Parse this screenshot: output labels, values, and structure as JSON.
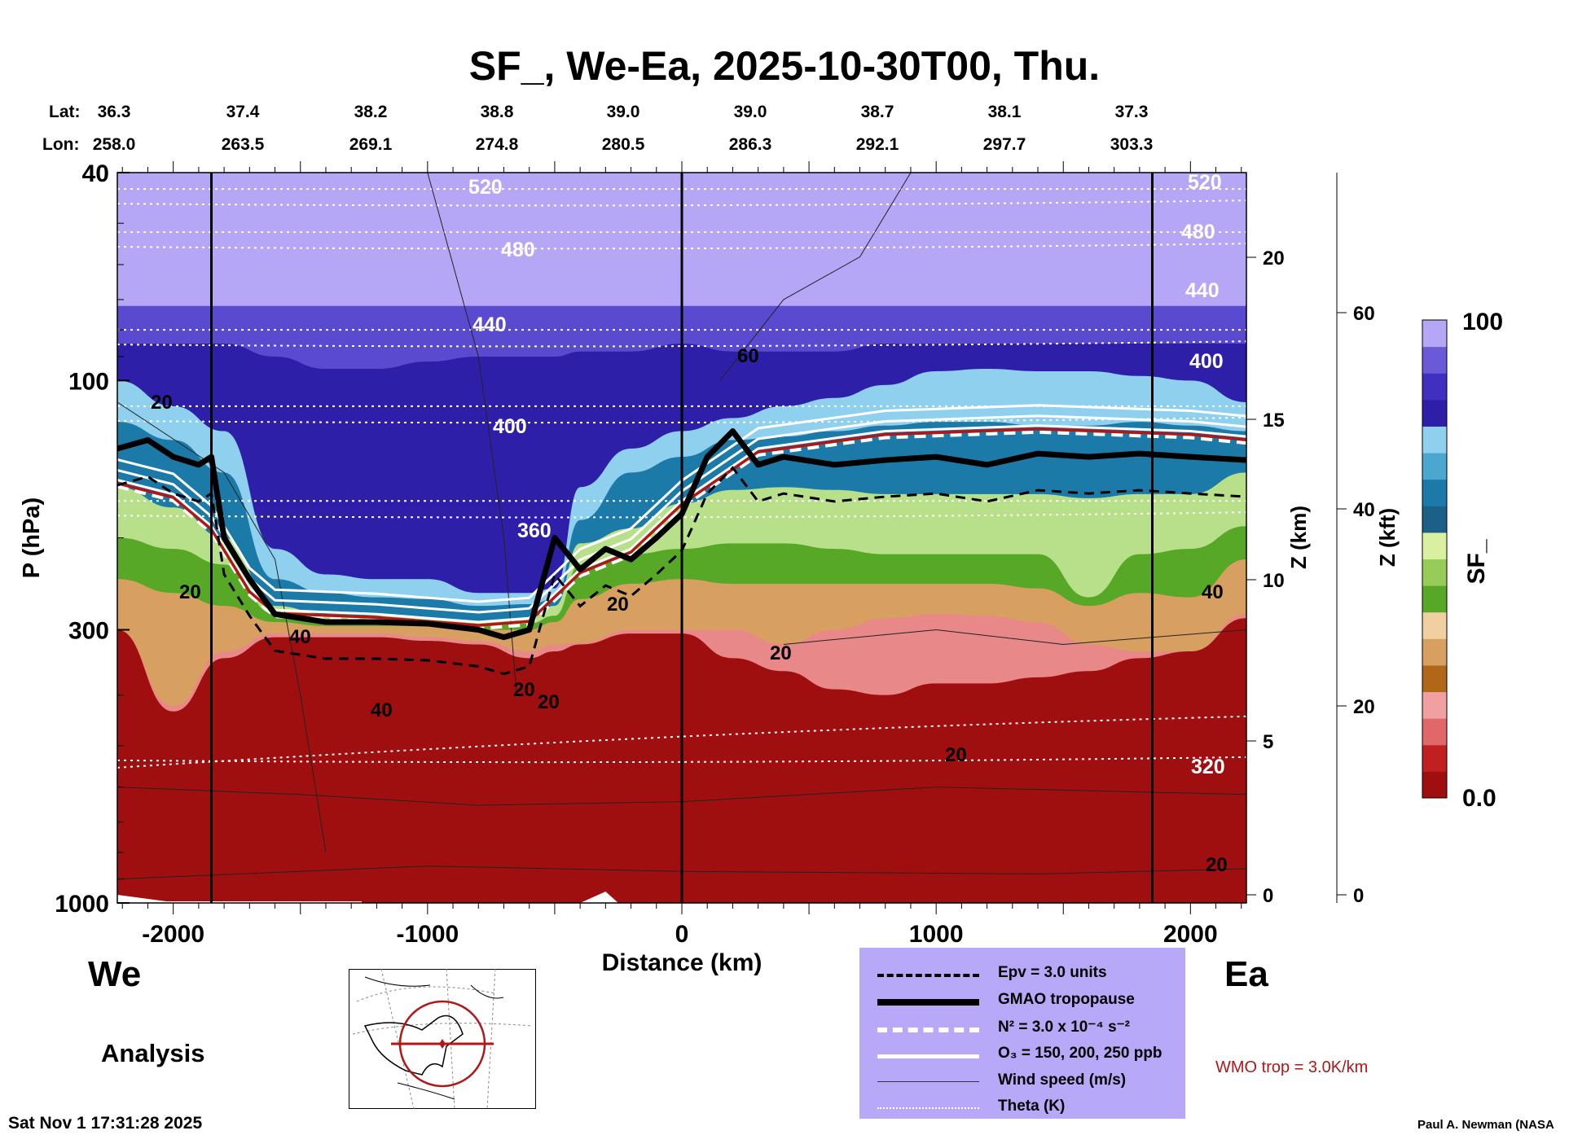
{
  "chart_data": {
    "type": "heatmap",
    "title": "SF_, We-Ea, 2025-10-30T00, Thu.",
    "xlabel": "Distance (km)",
    "ylabel": "P (hPa)",
    "y2label": "Z (km)",
    "y3label": "Z (kft)",
    "xlim": [
      -2220,
      2220
    ],
    "ylim": [
      1000,
      40
    ],
    "yscale": "log",
    "xticks": [
      {
        "v": -2000,
        "label": "-2000"
      },
      {
        "v": -1000,
        "label": "-1000"
      },
      {
        "v": 0,
        "label": "0"
      },
      {
        "v": 1000,
        "label": "1000"
      },
      {
        "v": 2000,
        "label": "2000"
      }
    ],
    "yticks": [
      {
        "v": 40,
        "label": "40"
      },
      {
        "v": 100,
        "label": "100"
      },
      {
        "v": 300,
        "label": "300"
      },
      {
        "v": 1000,
        "label": "1000"
      }
    ],
    "zkm_ticks": [
      {
        "v": 20,
        "label": "20"
      },
      {
        "v": 15,
        "label": "15"
      },
      {
        "v": 10,
        "label": "10"
      },
      {
        "v": 5,
        "label": "5"
      },
      {
        "v": 0,
        "label": "0"
      }
    ],
    "zkft_ticks": [
      {
        "v": 60,
        "label": "60"
      },
      {
        "v": 40,
        "label": "40"
      },
      {
        "v": 20,
        "label": "20"
      },
      {
        "v": 0,
        "label": "0"
      }
    ],
    "lat_label": "Lat:",
    "lon_label": "Lon:",
    "latlon": [
      {
        "lat": "36.3",
        "lon": "258.0"
      },
      {
        "lat": "37.4",
        "lon": "263.5"
      },
      {
        "lat": "38.2",
        "lon": "269.1"
      },
      {
        "lat": "38.8",
        "lon": "274.8"
      },
      {
        "lat": "39.0",
        "lon": "280.5"
      },
      {
        "lat": "39.0",
        "lon": "286.3"
      },
      {
        "lat": "38.7",
        "lon": "292.1"
      },
      {
        "lat": "38.1",
        "lon": "297.7"
      },
      {
        "lat": "37.3",
        "lon": "303.3"
      }
    ],
    "x_samples": [
      -2220,
      -2000,
      -1800,
      -1600,
      -1400,
      -1200,
      -1000,
      -800,
      -600,
      -500,
      -400,
      -200,
      0,
      200,
      400,
      600,
      800,
      1000,
      1200,
      1400,
      1600,
      1800,
      2000,
      2220
    ],
    "layers": [
      {
        "name": "sf-90-100",
        "color": "#b6a6f6",
        "top": [
          40,
          40,
          40,
          40,
          40,
          40,
          40,
          40,
          40,
          40,
          40,
          40,
          40,
          40,
          40,
          40,
          40,
          40,
          40,
          40,
          40,
          40,
          40,
          40
        ]
      },
      {
        "name": "sf-70-90",
        "color": "#5a4ad0",
        "top": [
          72,
          72,
          72,
          72,
          72,
          72,
          72,
          72,
          72,
          72,
          72,
          72,
          72,
          72,
          72,
          72,
          72,
          72,
          72,
          72,
          72,
          72,
          72,
          72
        ]
      },
      {
        "name": "sf-60-70",
        "color": "#2e1fa8",
        "top": [
          85,
          85,
          85,
          90,
          95,
          95,
          92,
          90,
          90,
          90,
          88,
          88,
          85,
          88,
          88,
          88,
          85,
          85,
          85,
          85,
          85,
          85,
          85,
          85
        ]
      },
      {
        "name": "sf-50-60",
        "color": "#8fd0ee",
        "top": [
          100,
          112,
          125,
          210,
          235,
          240,
          240,
          255,
          255,
          250,
          160,
          135,
          125,
          118,
          112,
          108,
          102,
          96,
          95,
          96,
          96,
          98,
          100,
          110
        ]
      },
      {
        "name": "sf-40-50",
        "color": "#1c7aa8",
        "top": [
          120,
          130,
          150,
          240,
          255,
          260,
          262,
          270,
          268,
          262,
          185,
          150,
          140,
          130,
          128,
          125,
          122,
          120,
          120,
          122,
          122,
          120,
          122,
          125
        ]
      },
      {
        "name": "sf-30-40",
        "color": "#b8e08a",
        "top": [
          160,
          175,
          200,
          270,
          280,
          282,
          285,
          290,
          285,
          270,
          205,
          192,
          172,
          162,
          160,
          162,
          165,
          165,
          165,
          165,
          168,
          165,
          165,
          150
        ]
      },
      {
        "name": "sf-25-30",
        "color": "#58a828",
        "top": [
          200,
          210,
          225,
          280,
          290,
          290,
          292,
          295,
          292,
          282,
          225,
          215,
          210,
          205,
          205,
          210,
          215,
          215,
          215,
          215,
          260,
          215,
          210,
          190
        ]
      },
      {
        "name": "sf-15-25",
        "color": "#d8a060",
        "top": [
          240,
          255,
          270,
          290,
          295,
          295,
          295,
          300,
          300,
          290,
          262,
          245,
          240,
          245,
          245,
          245,
          245,
          245,
          245,
          250,
          270,
          255,
          260,
          220
        ]
      },
      {
        "name": "sf-8-15",
        "color": "#e88888",
        "top": [
          300,
          420,
          330,
          305,
          305,
          305,
          310,
          315,
          330,
          320,
          318,
          300,
          300,
          300,
          320,
          300,
          285,
          280,
          282,
          290,
          320,
          330,
          330,
          280
        ]
      },
      {
        "name": "sf-0-8",
        "color": "#a00f10",
        "top": [
          300,
          430,
          340,
          310,
          310,
          310,
          315,
          320,
          340,
          330,
          320,
          305,
          305,
          340,
          360,
          390,
          400,
          380,
          380,
          370,
          360,
          340,
          330,
          285
        ]
      }
    ],
    "tropopause_gmao": [
      [
        -2220,
        135
      ],
      [
        -2100,
        130
      ],
      [
        -2000,
        140
      ],
      [
        -1900,
        145
      ],
      [
        -1850,
        140
      ],
      [
        -1800,
        200
      ],
      [
        -1700,
        240
      ],
      [
        -1600,
        280
      ],
      [
        -1400,
        290
      ],
      [
        -1200,
        290
      ],
      [
        -1000,
        292
      ],
      [
        -800,
        300
      ],
      [
        -700,
        310
      ],
      [
        -600,
        300
      ],
      [
        -500,
        200
      ],
      [
        -400,
        230
      ],
      [
        -300,
        210
      ],
      [
        -200,
        220
      ],
      [
        -100,
        200
      ],
      [
        0,
        180
      ],
      [
        100,
        140
      ],
      [
        200,
        125
      ],
      [
        300,
        145
      ],
      [
        400,
        140
      ],
      [
        600,
        145
      ],
      [
        800,
        142
      ],
      [
        1000,
        140
      ],
      [
        1200,
        145
      ],
      [
        1400,
        138
      ],
      [
        1600,
        140
      ],
      [
        1800,
        138
      ],
      [
        2000,
        140
      ],
      [
        2220,
        142
      ]
    ],
    "wmo_tropopause": [
      [
        -2220,
        155
      ],
      [
        -2000,
        165
      ],
      [
        -1850,
        190
      ],
      [
        -1700,
        250
      ],
      [
        -1600,
        275
      ],
      [
        -1200,
        280
      ],
      [
        -800,
        290
      ],
      [
        -600,
        285
      ],
      [
        -400,
        230
      ],
      [
        -200,
        210
      ],
      [
        0,
        170
      ],
      [
        300,
        135
      ],
      [
        800,
        125
      ],
      [
        1400,
        122
      ],
      [
        2000,
        125
      ],
      [
        2220,
        128
      ]
    ],
    "theta_lines": [
      {
        "label": "520",
        "p": 43
      },
      {
        "label": "480",
        "p": 52
      },
      {
        "label": "440",
        "p": 80
      },
      {
        "label": "400",
        "p": 112
      },
      {
        "label": "360",
        "p": 170
      },
      {
        "label": "320",
        "p": 500
      }
    ],
    "wind_labels": [
      "20",
      "20",
      "40",
      "40",
      "60",
      "20",
      "20",
      "20",
      "20",
      "40",
      "20",
      "20"
    ],
    "colorbar": {
      "label": "SF_",
      "max_label": "100",
      "min_label": "0.0",
      "range": [
        0,
        100
      ],
      "colors": [
        "#a00f10",
        "#c02020",
        "#e06868",
        "#f0a0a0",
        "#b06818",
        "#d8a060",
        "#f0d0a0",
        "#58a828",
        "#98cc58",
        "#d8f0a0",
        "#1c6088",
        "#1c7aa8",
        "#4aa8d0",
        "#8fd0ee",
        "#2e1fa8",
        "#4030c0",
        "#6a5ad8",
        "#b6a6f6"
      ]
    }
  },
  "labels": {
    "west": "We",
    "east": "Ea",
    "analysis": "Analysis",
    "timestamp": "Sat Nov  1 17:31:28 2025",
    "credit": "Paul A. Newman (NASA",
    "wmo": "WMO trop = 3.0K/km"
  },
  "legend": [
    {
      "label": "Epv = 3.0 units"
    },
    {
      "label": "GMAO tropopause"
    },
    {
      "label": "N² = 3.0 x 10⁻⁴ s⁻²"
    },
    {
      "label": "O₃ = 150, 200, 250 ppb"
    },
    {
      "label": "Wind speed (m/s)"
    },
    {
      "label": "Theta (K)"
    }
  ]
}
